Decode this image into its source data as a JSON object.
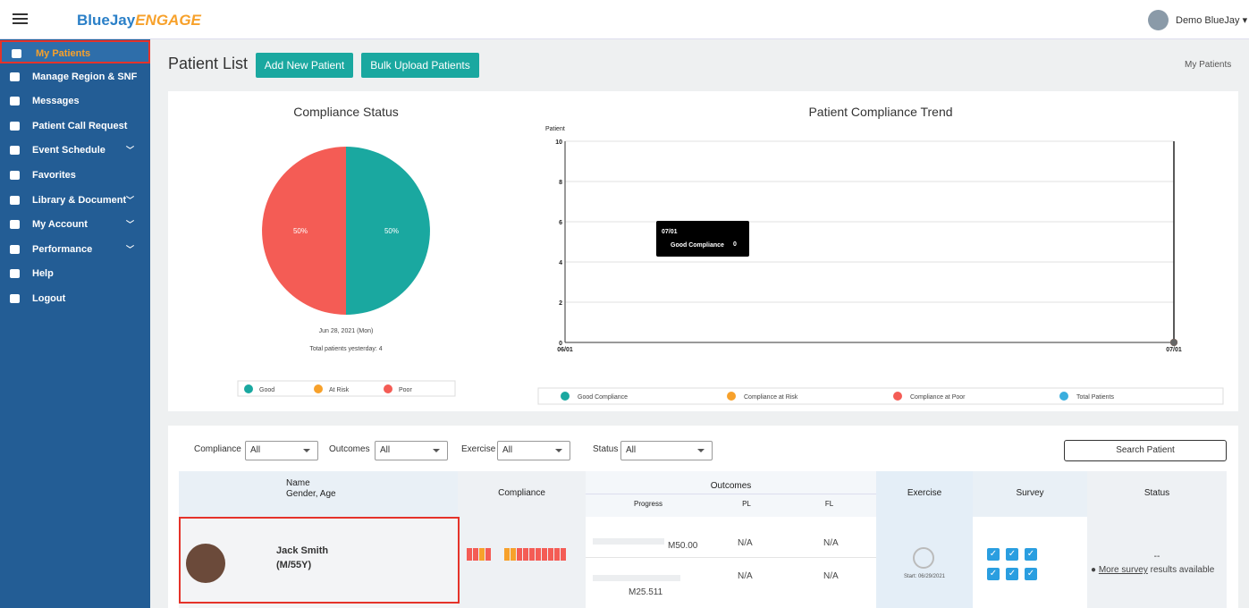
{
  "header": {
    "brand": "BlueJay",
    "brand_accent": "ENGAGE",
    "user": "Demo BlueJay"
  },
  "sidebar": [
    "My Patients",
    "Manage Region & SNF",
    "Messages",
    "Patient Call Request",
    "Event Schedule",
    "Favorites",
    "Library & Document",
    "My Account",
    "Performance",
    "Help",
    "Logout"
  ],
  "page": {
    "title": "Patient List",
    "buttons": [
      "Add New Patient",
      "Bulk Upload Patients"
    ],
    "breadcrumb": "My Patients"
  },
  "chart_data": [
    {
      "type": "pie",
      "title": "Compliance Status",
      "categories": [
        "Good",
        "At Risk",
        "Poor"
      ],
      "values": [
        50,
        0,
        50
      ],
      "value_labels": [
        "50%",
        null,
        "50%"
      ],
      "colors": [
        "#1aa8a0",
        "#f7a12b",
        "#f45c55"
      ],
      "subtitle": "Jun 28, 2021 (Mon)",
      "note": "Total patients yesterday: 4"
    },
    {
      "type": "line",
      "title": "Patient Compliance Trend",
      "y_label": "Patient",
      "x": [
        "06/01",
        "07/01"
      ],
      "ylim": [
        0,
        10
      ],
      "yticks": [
        0,
        2,
        4,
        6,
        8,
        10
      ],
      "grid": true,
      "series": [
        {
          "name": "Good Compliance",
          "color": "#1aa8a0",
          "values": [
            null,
            0
          ]
        },
        {
          "name": "Compliance at Risk",
          "color": "#f7a12b",
          "values": [
            null,
            0
          ]
        },
        {
          "name": "Compliance at Poor",
          "color": "#f45c55",
          "values": [
            null,
            0
          ]
        },
        {
          "name": "Total Patients",
          "color": "#3aaede",
          "values": [
            null,
            0
          ]
        }
      ],
      "tooltip": {
        "title": "07/01",
        "label": "Good Compliance",
        "value": 0
      }
    }
  ],
  "table": {
    "filters": [
      {
        "label": "Compliance",
        "value": "All"
      },
      {
        "label": "Outcomes",
        "value": "All"
      },
      {
        "label": "Exercise",
        "value": "All"
      },
      {
        "label": "Status",
        "value": "All"
      }
    ],
    "search": "Search Patient",
    "columns": {
      "name": "Name",
      "gender_age": "Gender, Age",
      "compliance": "Compliance",
      "outcomes": "Outcomes",
      "progress": "Progress",
      "pl": "PL",
      "fl": "FL",
      "exercise": "Exercise",
      "survey": "Survey",
      "status": "Status"
    },
    "rows": [
      {
        "name": "Jack Smith",
        "gender_age": "(M/55Y)",
        "progress": [
          "M50.00",
          "M25.511"
        ],
        "pl": [
          "N/A",
          "N/A"
        ],
        "fl": [
          "N/A",
          "N/A"
        ],
        "exercise_start": "Start: 06/29/2021",
        "status": "--",
        "status_link": "More survey",
        "status_text": "results available"
      }
    ]
  }
}
